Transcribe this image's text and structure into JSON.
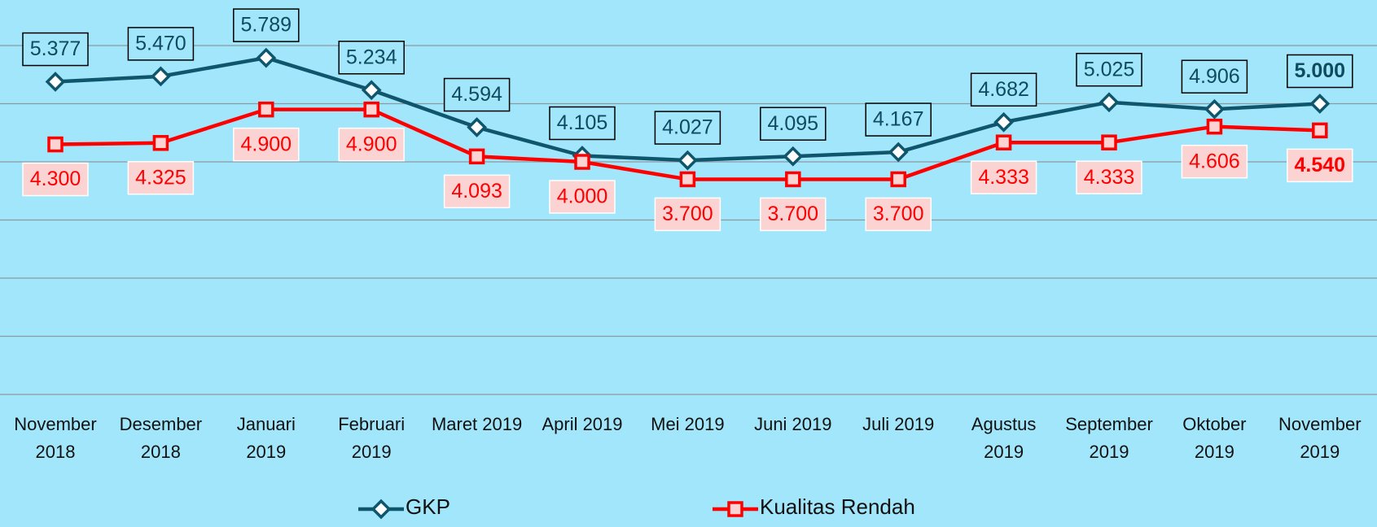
{
  "chart_data": {
    "type": "line",
    "categories": [
      "November 2018",
      "Desember 2018",
      "Januari 2019",
      "Februari 2019",
      "Maret 2019",
      "April 2019",
      "Mei 2019",
      "Juni 2019",
      "Juli 2019",
      "Agustus 2019",
      "September 2019",
      "Oktober 2019",
      "November 2019"
    ],
    "series": [
      {
        "name": "GKP",
        "color": "#0f566d",
        "values": [
          5377,
          5470,
          5789,
          5234,
          4594,
          4105,
          4027,
          4095,
          4167,
          4682,
          5025,
          4906,
          5000
        ],
        "value_labels": [
          "5.377",
          "5.470",
          "5.789",
          "5.234",
          "4.594",
          "4.105",
          "4.027",
          "4.095",
          "4.167",
          "4.682",
          "5.025",
          "4.906",
          "5.000"
        ]
      },
      {
        "name": "Kualitas Rendah",
        "color": "#ff0000",
        "values": [
          4300,
          4325,
          4900,
          4900,
          4093,
          4000,
          3700,
          3700,
          3700,
          4333,
          4333,
          4606,
          4540
        ],
        "value_labels": [
          "4.300",
          "4.325",
          "4.900",
          "4.900",
          "4.093",
          "4.000",
          "3.700",
          "3.700",
          "3.700",
          "4.333",
          "4.333",
          "4.606",
          "4.540"
        ]
      }
    ],
    "ylim": [
      0,
      6000
    ],
    "yticks": [
      0,
      1000,
      2000,
      3000,
      4000,
      5000,
      6000
    ],
    "grid": true
  }
}
